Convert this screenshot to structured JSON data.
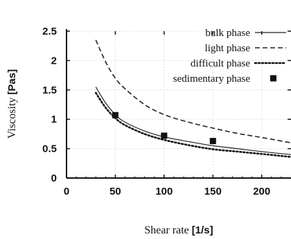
{
  "chart_data": {
    "type": "line",
    "title": "",
    "xlabel": "Shear rate",
    "xunit": "[1/s]",
    "ylabel": "Viscosity",
    "yunit": "[Pas]",
    "xlim": [
      0,
      230
    ],
    "ylim": [
      0,
      2.5
    ],
    "x_ticks": [
      "0",
      "50",
      "100",
      "150",
      "200"
    ],
    "y_ticks": [
      "0",
      "0.5",
      "1",
      "1.5",
      "2",
      "2.5"
    ],
    "grid": true,
    "legend_position": "top-right",
    "series": [
      {
        "name": "bulk phase",
        "style": "solid",
        "color": "#222222",
        "x": [
          30,
          40,
          50,
          60,
          80,
          100,
          125,
          150,
          175,
          200,
          230
        ],
        "y": [
          1.55,
          1.28,
          1.08,
          0.95,
          0.8,
          0.7,
          0.62,
          0.55,
          0.5,
          0.45,
          0.4
        ]
      },
      {
        "name": "light phase",
        "style": "dashed",
        "color": "#222222",
        "x": [
          30,
          40,
          50,
          60,
          80,
          100,
          125,
          150,
          175,
          200,
          230
        ],
        "y": [
          2.35,
          1.98,
          1.7,
          1.52,
          1.25,
          1.08,
          0.95,
          0.85,
          0.76,
          0.69,
          0.6
        ]
      },
      {
        "name": "difficult phase",
        "style": "dotted",
        "color": "#111111",
        "x": [
          30,
          40,
          50,
          60,
          80,
          100,
          125,
          150,
          175,
          200,
          230
        ],
        "y": [
          1.45,
          1.2,
          1.02,
          0.9,
          0.75,
          0.65,
          0.56,
          0.49,
          0.45,
          0.41,
          0.36
        ]
      },
      {
        "name": "sedimentary phase",
        "style": "markers",
        "color": "#111111",
        "x": [
          50,
          100,
          150
        ],
        "y": [
          1.07,
          0.72,
          0.63
        ]
      }
    ]
  }
}
